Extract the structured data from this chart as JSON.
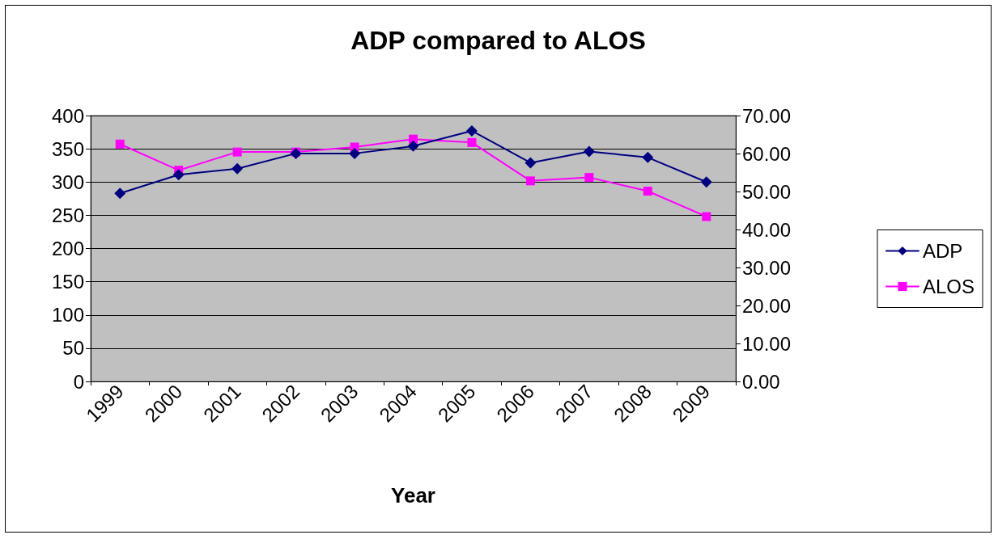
{
  "chart_data": {
    "type": "line",
    "title": "ADP compared to ALOS",
    "xlabel": "Year",
    "categories": [
      "1999",
      "2000",
      "2001",
      "2002",
      "2003",
      "2004",
      "2005",
      "2006",
      "2007",
      "2008",
      "2009"
    ],
    "series": [
      {
        "name": "ADP",
        "color": "#000080",
        "marker": "diamond",
        "values": [
          283,
          311,
          320,
          343,
          343,
          354,
          377,
          329,
          346,
          337,
          300
        ]
      },
      {
        "name": "ALOS",
        "color": "#ff00ff",
        "marker": "square",
        "axis": "y2",
        "values": [
          62.5,
          55.6,
          60.4,
          60.4,
          61.7,
          63.8,
          62.9,
          52.8,
          53.7,
          50.1,
          43.4
        ]
      }
    ],
    "ylim": [
      0,
      400
    ],
    "yticks": [
      0,
      50,
      100,
      150,
      200,
      250,
      300,
      350,
      400
    ],
    "y2lim": [
      0,
      70
    ],
    "y2ticks": [
      {
        "value": 0,
        "label": "0.00"
      },
      {
        "value": 10,
        "label": "10.00"
      },
      {
        "value": 20,
        "label": "20.00"
      },
      {
        "value": 30,
        "label": "30.00"
      },
      {
        "value": 40,
        "label": "40.00"
      },
      {
        "value": 50,
        "label": "50.00"
      },
      {
        "value": 60,
        "label": "60.00"
      },
      {
        "value": 70,
        "label": "70.00"
      }
    ],
    "grid": "y",
    "legend": "right",
    "line_style": "solid"
  }
}
